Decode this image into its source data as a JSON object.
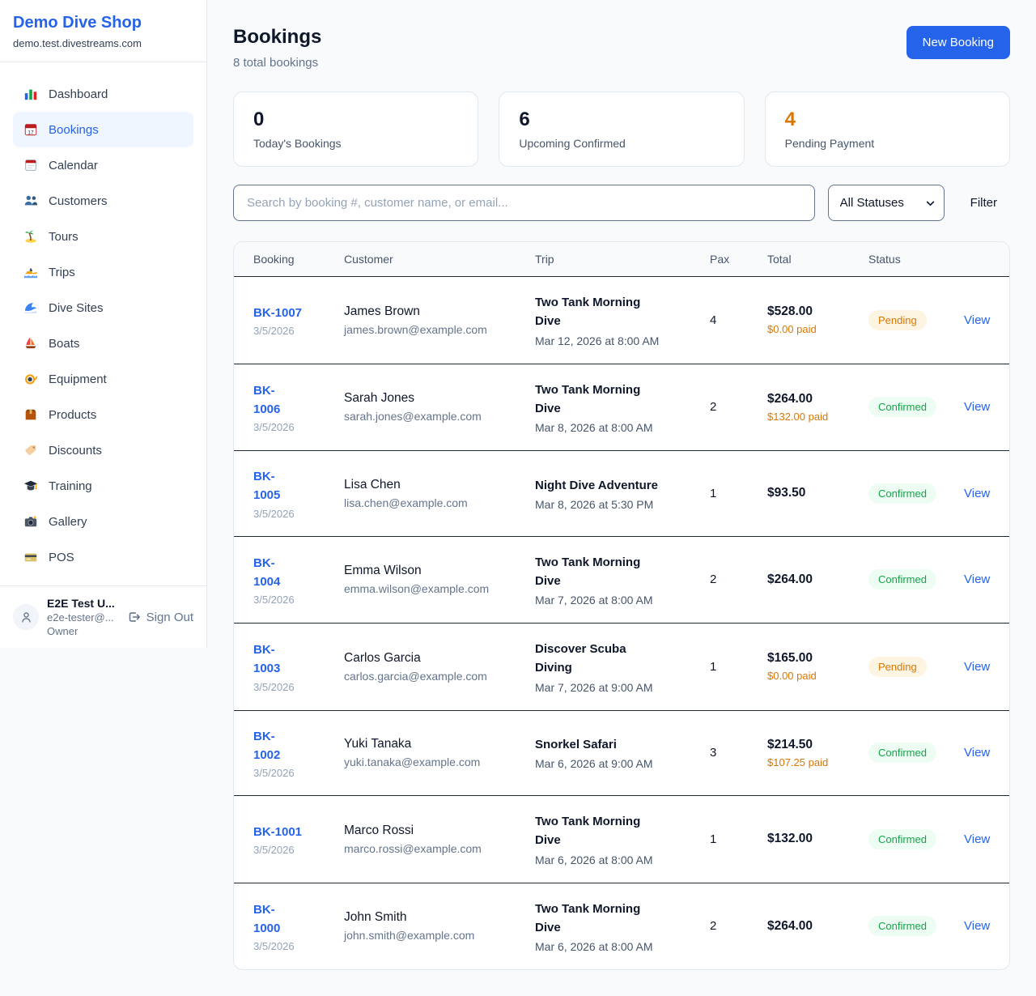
{
  "brand": {
    "name": "Demo Dive Shop",
    "domain": "demo.test.divestreams.com"
  },
  "sidebar": {
    "items": [
      {
        "label": "Dashboard",
        "icon": "bar-chart",
        "active": false
      },
      {
        "label": "Bookings",
        "icon": "calendar-date",
        "active": true
      },
      {
        "label": "Calendar",
        "icon": "calendar",
        "active": false
      },
      {
        "label": "Customers",
        "icon": "people",
        "active": false
      },
      {
        "label": "Tours",
        "icon": "island",
        "active": false
      },
      {
        "label": "Trips",
        "icon": "speedboat",
        "active": false
      },
      {
        "label": "Dive Sites",
        "icon": "wave",
        "active": false
      },
      {
        "label": "Boats",
        "icon": "sailboat",
        "active": false
      },
      {
        "label": "Equipment",
        "icon": "diving-mask",
        "active": false
      },
      {
        "label": "Products",
        "icon": "package",
        "active": false
      },
      {
        "label": "Discounts",
        "icon": "label-tag",
        "active": false
      },
      {
        "label": "Training",
        "icon": "graduation-cap",
        "active": false
      },
      {
        "label": "Gallery",
        "icon": "camera",
        "active": false
      },
      {
        "label": "POS",
        "icon": "credit-card",
        "active": false
      }
    ],
    "user": {
      "name": "E2E Test U...",
      "email": "e2e-tester@...",
      "role": "Owner",
      "sign_out_label": "Sign Out"
    }
  },
  "header": {
    "title": "Bookings",
    "subtitle": "8 total bookings",
    "new_booking_label": "New Booking"
  },
  "stats": [
    {
      "value": "0",
      "label": "Today's Bookings",
      "accent": false
    },
    {
      "value": "6",
      "label": "Upcoming Confirmed",
      "accent": false
    },
    {
      "value": "4",
      "label": "Pending Payment",
      "accent": true
    }
  ],
  "filters": {
    "search_placeholder": "Search by booking #, customer name, or email...",
    "search_value": "",
    "status_selected": "All Statuses",
    "filter_label": "Filter"
  },
  "table": {
    "columns": [
      "Booking",
      "Customer",
      "Trip",
      "Pax",
      "Total",
      "Status",
      ""
    ],
    "view_label": "View",
    "rows": [
      {
        "booking_id": "BK-1007",
        "id_wrapped": false,
        "booking_date": "3/5/2026",
        "customer_name": "James Brown",
        "customer_email": "james.brown@example.com",
        "trip_name": "Two Tank Morning Dive",
        "trip_datetime": "Mar 12, 2026 at 8:00 AM",
        "pax": "4",
        "total": "$528.00",
        "paid": "$0.00 paid",
        "status": "Pending"
      },
      {
        "booking_id": "BK-1006",
        "id_wrapped": true,
        "booking_date": "3/5/2026",
        "customer_name": "Sarah Jones",
        "customer_email": "sarah.jones@example.com",
        "trip_name": "Two Tank Morning Dive",
        "trip_datetime": "Mar 8, 2026 at 8:00 AM",
        "pax": "2",
        "total": "$264.00",
        "paid": "$132.00 paid",
        "status": "Confirmed"
      },
      {
        "booking_id": "BK-1005",
        "id_wrapped": true,
        "booking_date": "3/5/2026",
        "customer_name": "Lisa Chen",
        "customer_email": "lisa.chen@example.com",
        "trip_name": "Night Dive Adventure",
        "trip_datetime": "Mar 8, 2026 at 5:30 PM",
        "pax": "1",
        "total": "$93.50",
        "paid": null,
        "status": "Confirmed"
      },
      {
        "booking_id": "BK-1004",
        "id_wrapped": true,
        "booking_date": "3/5/2026",
        "customer_name": "Emma Wilson",
        "customer_email": "emma.wilson@example.com",
        "trip_name": "Two Tank Morning Dive",
        "trip_datetime": "Mar 7, 2026 at 8:00 AM",
        "pax": "2",
        "total": "$264.00",
        "paid": null,
        "status": "Confirmed"
      },
      {
        "booking_id": "BK-1003",
        "id_wrapped": true,
        "booking_date": "3/5/2026",
        "customer_name": "Carlos Garcia",
        "customer_email": "carlos.garcia@example.com",
        "trip_name": "Discover Scuba Diving",
        "trip_datetime": "Mar 7, 2026 at 9:00 AM",
        "pax": "1",
        "total": "$165.00",
        "paid": "$0.00 paid",
        "status": "Pending"
      },
      {
        "booking_id": "BK-1002",
        "id_wrapped": true,
        "booking_date": "3/5/2026",
        "customer_name": "Yuki Tanaka",
        "customer_email": "yuki.tanaka@example.com",
        "trip_name": "Snorkel Safari",
        "trip_datetime": "Mar 6, 2026 at 9:00 AM",
        "pax": "3",
        "total": "$214.50",
        "paid": "$107.25 paid",
        "status": "Confirmed"
      },
      {
        "booking_id": "BK-1001",
        "id_wrapped": false,
        "booking_date": "3/5/2026",
        "customer_name": "Marco Rossi",
        "customer_email": "marco.rossi@example.com",
        "trip_name": "Two Tank Morning Dive",
        "trip_datetime": "Mar 6, 2026 at 8:00 AM",
        "pax": "1",
        "total": "$132.00",
        "paid": null,
        "status": "Confirmed"
      },
      {
        "booking_id": "BK-1000",
        "id_wrapped": true,
        "booking_date": "3/5/2026",
        "customer_name": "John Smith",
        "customer_email": "john.smith@example.com",
        "trip_name": "Two Tank Morning Dive",
        "trip_datetime": "Mar 6, 2026 at 8:00 AM",
        "pax": "2",
        "total": "$264.00",
        "paid": null,
        "status": "Confirmed"
      }
    ]
  },
  "colors": {
    "accent_blue": "#2563eb",
    "pending_orange": "#d97706",
    "confirmed_green": "#16a34a"
  }
}
